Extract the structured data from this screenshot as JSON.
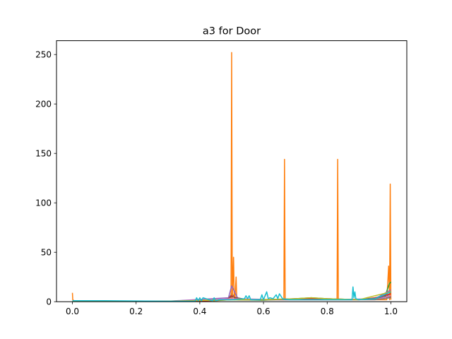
{
  "chart_data": {
    "type": "line",
    "title": "a3 for Door",
    "xlabel": "",
    "ylabel": "",
    "xlim": [
      -0.05,
      1.05
    ],
    "ylim": [
      0,
      264
    ],
    "xticks": [
      0.0,
      0.2,
      0.4,
      0.6,
      0.8,
      1.0
    ],
    "xtick_labels": [
      "0.0",
      "0.2",
      "0.4",
      "0.6",
      "0.8",
      "1.0"
    ],
    "yticks": [
      0,
      50,
      100,
      150,
      200,
      250
    ],
    "ytick_labels": [
      "0",
      "50",
      "100",
      "150",
      "200",
      "250"
    ],
    "grid": false,
    "legend": "none",
    "series": [
      {
        "color": "#1f77b4",
        "x": [
          0.0,
          0.1,
          0.2,
          0.3,
          0.4,
          0.45,
          0.49,
          0.5,
          0.52,
          0.6,
          0.7,
          0.8,
          0.9,
          0.95,
          0.99,
          1.0
        ],
        "y": [
          1,
          0.5,
          0.5,
          0.5,
          1,
          1.5,
          3,
          8,
          2,
          2,
          2,
          2,
          2,
          3,
          6,
          10
        ]
      },
      {
        "color": "#ff7f0e",
        "x": [
          0.0,
          0.001,
          0.005,
          0.1,
          0.3,
          0.45,
          0.498,
          0.5,
          0.502,
          0.506,
          0.508,
          0.51,
          0.514,
          0.516,
          0.6,
          0.664,
          0.666,
          0.668,
          0.75,
          0.831,
          0.833,
          0.835,
          0.9,
          0.987,
          0.99,
          0.993,
          0.996,
          0.998,
          1.0
        ],
        "y": [
          9,
          2,
          1,
          0.5,
          0.5,
          1,
          2,
          252,
          2,
          45,
          2,
          2,
          25,
          2,
          2,
          2,
          144,
          2,
          2,
          2,
          144,
          2,
          2,
          2,
          18,
          36,
          2,
          119,
          2
        ]
      },
      {
        "color": "#2ca02c",
        "x": [
          0.0,
          0.2,
          0.4,
          0.5,
          0.6,
          0.7,
          0.75,
          0.8,
          0.9,
          0.98,
          0.995,
          1.0
        ],
        "y": [
          1,
          0.5,
          0.5,
          2,
          1.5,
          3,
          4,
          3,
          2,
          4,
          18,
          20
        ]
      },
      {
        "color": "#d62728",
        "x": [
          0.0,
          0.2,
          0.4,
          0.48,
          0.5,
          0.52,
          0.6,
          0.7,
          0.8,
          0.9,
          0.95,
          1.0
        ],
        "y": [
          1,
          0.5,
          0.5,
          2,
          6,
          2,
          2,
          3,
          3,
          2,
          4,
          8
        ]
      },
      {
        "color": "#9467bd",
        "x": [
          0.0,
          0.3,
          0.49,
          0.5,
          0.52,
          0.65,
          0.8,
          0.95,
          1.0
        ],
        "y": [
          0.5,
          0.5,
          4,
          16,
          3,
          2,
          2,
          3,
          12
        ]
      },
      {
        "color": "#8c564b",
        "x": [
          0.0,
          0.3,
          0.48,
          0.5,
          0.55,
          0.7,
          0.9,
          1.0
        ],
        "y": [
          0.5,
          0.5,
          2,
          5,
          2,
          2,
          2,
          5
        ]
      },
      {
        "color": "#e377c2",
        "x": [
          0.0,
          0.3,
          0.5,
          0.6,
          0.8,
          0.95,
          1.0
        ],
        "y": [
          0.5,
          0.5,
          3,
          2,
          2,
          2,
          6
        ]
      },
      {
        "color": "#7f7f7f",
        "x": [
          0.0,
          0.3,
          0.5,
          0.6,
          0.8,
          0.95,
          1.0
        ],
        "y": [
          0.5,
          0.5,
          2,
          2,
          2,
          2,
          4
        ]
      },
      {
        "color": "#bcbd22",
        "x": [
          0.0,
          0.3,
          0.5,
          0.6,
          0.7,
          0.75,
          0.8,
          0.9,
          1.0
        ],
        "y": [
          0.5,
          0.5,
          2,
          2,
          3,
          4,
          3,
          2,
          10
        ]
      },
      {
        "color": "#17becf",
        "x": [
          0.0,
          0.1,
          0.3,
          0.385,
          0.39,
          0.395,
          0.4,
          0.405,
          0.41,
          0.44,
          0.445,
          0.45,
          0.46,
          0.5,
          0.54,
          0.545,
          0.55,
          0.555,
          0.56,
          0.59,
          0.595,
          0.6,
          0.61,
          0.615,
          0.62,
          0.63,
          0.64,
          0.645,
          0.65,
          0.66,
          0.68,
          0.7,
          0.8,
          0.878,
          0.881,
          0.884,
          0.887,
          0.89,
          0.9,
          0.95,
          1.0
        ],
        "y": [
          1,
          1,
          0.5,
          0.5,
          4,
          1,
          4,
          1,
          4,
          1,
          4,
          1,
          2,
          2,
          3,
          6,
          3,
          6,
          2,
          2,
          7,
          2,
          10,
          3,
          4,
          3,
          7,
          3,
          8,
          3,
          2,
          2,
          2,
          2,
          15,
          4,
          10,
          3,
          2,
          3,
          10
        ]
      }
    ]
  }
}
